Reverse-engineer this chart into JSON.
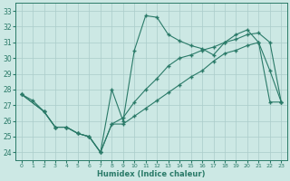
{
  "xlabel": "Humidex (Indice chaleur)",
  "bg_color": "#cce8e4",
  "grid_color": "#aaccca",
  "line_color": "#2a7a68",
  "xlim": [
    -0.5,
    23.5
  ],
  "ylim": [
    23.5,
    33.5
  ],
  "xticks": [
    0,
    1,
    2,
    3,
    4,
    5,
    6,
    7,
    8,
    9,
    10,
    11,
    12,
    13,
    14,
    15,
    16,
    17,
    18,
    19,
    20,
    21,
    22,
    23
  ],
  "yticks": [
    24,
    25,
    26,
    27,
    28,
    29,
    30,
    31,
    32,
    33
  ],
  "line1_x": [
    0,
    1,
    2,
    3,
    4,
    5,
    6,
    7,
    8,
    9,
    10,
    11,
    12,
    13,
    14,
    15,
    16,
    17,
    18,
    19,
    20,
    21,
    22,
    23
  ],
  "line1_y": [
    27.7,
    27.3,
    26.6,
    25.6,
    25.6,
    25.2,
    25.0,
    24.0,
    28.0,
    26.0,
    30.5,
    32.7,
    32.6,
    31.5,
    31.1,
    30.8,
    30.6,
    30.2,
    31.0,
    31.5,
    31.8,
    31.0,
    29.2,
    27.2
  ],
  "line2_x": [
    0,
    2,
    3,
    4,
    5,
    6,
    7,
    8,
    9,
    10,
    11,
    12,
    13,
    14,
    15,
    16,
    17,
    18,
    19,
    20,
    21,
    22,
    23
  ],
  "line2_y": [
    27.7,
    26.6,
    25.6,
    25.6,
    25.2,
    25.0,
    24.0,
    25.8,
    26.2,
    27.2,
    28.0,
    28.7,
    29.5,
    30.0,
    30.2,
    30.5,
    30.7,
    31.0,
    31.2,
    31.5,
    31.6,
    31.0,
    27.2
  ],
  "line3_x": [
    0,
    2,
    3,
    4,
    5,
    6,
    7,
    8,
    9,
    10,
    11,
    12,
    13,
    14,
    15,
    16,
    17,
    18,
    19,
    20,
    21,
    22,
    23
  ],
  "line3_y": [
    27.7,
    26.6,
    25.6,
    25.6,
    25.2,
    25.0,
    24.0,
    25.8,
    25.8,
    26.3,
    26.8,
    27.3,
    27.8,
    28.3,
    28.8,
    29.2,
    29.8,
    30.3,
    30.5,
    30.8,
    31.0,
    27.2,
    27.2
  ]
}
